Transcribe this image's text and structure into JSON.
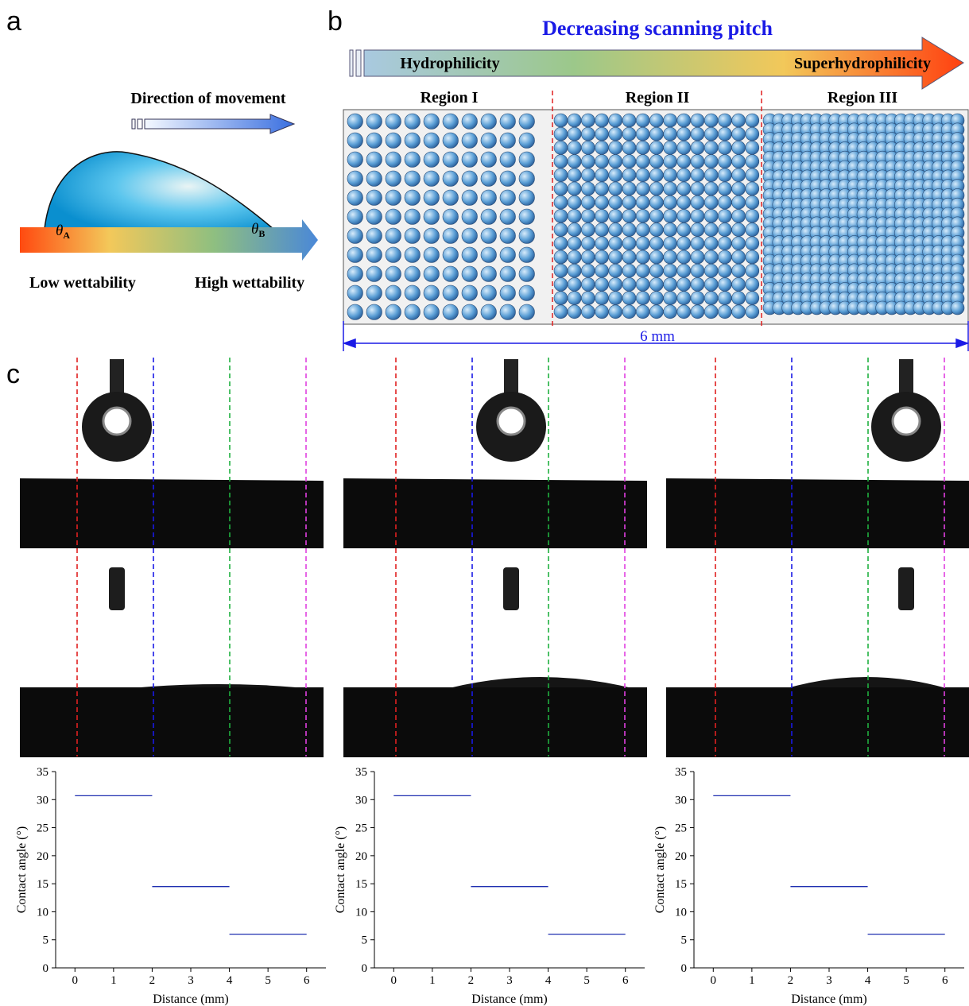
{
  "figure": {
    "panel_labels": [
      "a",
      "b",
      "c"
    ],
    "a": {
      "direction": "Direction of movement",
      "angle_a": {
        "symbol": "θ",
        "sub": "A"
      },
      "angle_b": {
        "symbol": "θ",
        "sub": "B"
      },
      "low": "Low wettability",
      "high": "High wettability"
    },
    "b": {
      "title": "Decreasing scanning pitch",
      "left": "Hydrophilicity",
      "right": "Superhydrophilicity",
      "regions": [
        "Region I",
        "Region II",
        "Region III"
      ],
      "width": "6 mm"
    }
  },
  "chart_data": [
    {
      "type": "line",
      "xlabel": "Distance (mm)",
      "ylabel": "Contact angle (°)",
      "xlim": [
        -0.5,
        6.5
      ],
      "ylim": [
        0,
        35
      ],
      "xticks": [
        0,
        1,
        2,
        3,
        4,
        5,
        6
      ],
      "yticks": [
        0,
        5,
        10,
        15,
        20,
        25,
        30,
        35
      ],
      "series": [
        {
          "color": "#1f2fb0",
          "x": [
            0,
            2
          ],
          "values": [
            30.7,
            30.7
          ]
        },
        {
          "color": "#1f2fb0",
          "x": [
            2,
            4
          ],
          "values": [
            14.5,
            14.5
          ]
        },
        {
          "color": "#1f2fb0",
          "x": [
            4,
            6
          ],
          "values": [
            6,
            6
          ]
        }
      ]
    },
    {
      "type": "line",
      "xlabel": "Distance (mm)",
      "ylabel": "Contact angle (°)",
      "xlim": [
        -0.5,
        6.5
      ],
      "ylim": [
        0,
        35
      ],
      "xticks": [
        0,
        1,
        2,
        3,
        4,
        5,
        6
      ],
      "yticks": [
        0,
        5,
        10,
        15,
        20,
        25,
        30,
        35
      ],
      "series": [
        {
          "color": "#1f2fb0",
          "x": [
            0,
            2
          ],
          "values": [
            30.7,
            30.7
          ]
        },
        {
          "color": "#1f2fb0",
          "x": [
            2,
            4
          ],
          "values": [
            14.5,
            14.5
          ]
        },
        {
          "color": "#1f2fb0",
          "x": [
            4,
            6
          ],
          "values": [
            6,
            6
          ]
        }
      ]
    },
    {
      "type": "line",
      "xlabel": "Distance (mm)",
      "ylabel": "Contact angle (°)",
      "xlim": [
        -0.5,
        6.5
      ],
      "ylim": [
        0,
        35
      ],
      "xticks": [
        0,
        1,
        2,
        3,
        4,
        5,
        6
      ],
      "yticks": [
        0,
        5,
        10,
        15,
        20,
        25,
        30,
        35
      ],
      "series": [
        {
          "color": "#1f2fb0",
          "x": [
            0,
            2
          ],
          "values": [
            30.7,
            30.7
          ]
        },
        {
          "color": "#1f2fb0",
          "x": [
            2,
            4
          ],
          "values": [
            14.5,
            14.5
          ]
        },
        {
          "color": "#1f2fb0",
          "x": [
            4,
            6
          ],
          "values": [
            6,
            6
          ]
        }
      ]
    }
  ]
}
